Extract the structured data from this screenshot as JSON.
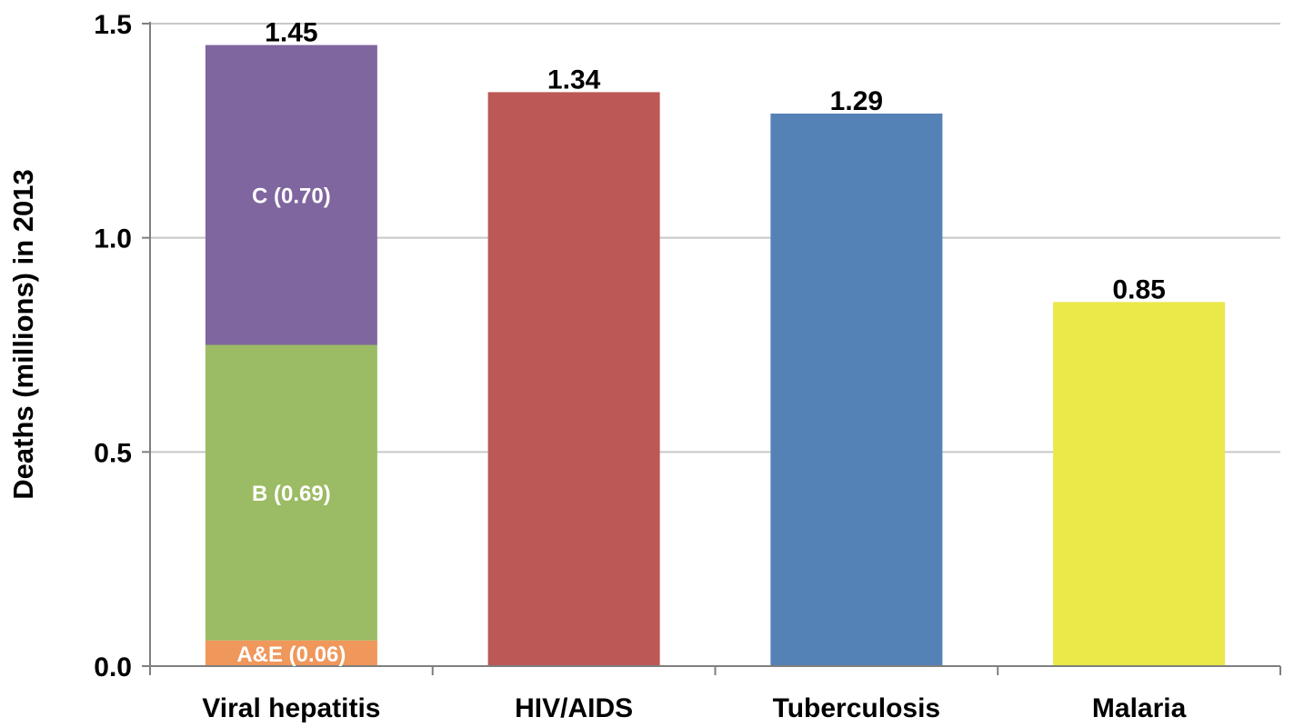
{
  "chart_data": {
    "type": "bar",
    "stacked": true,
    "ylabel": "Deaths (millions) in 2013",
    "ylim": [
      0,
      1.5
    ],
    "yticks": [
      "0.0",
      "0.5",
      "1.0",
      "1.5"
    ],
    "ytick_values": [
      0,
      0.5,
      1.0,
      1.5
    ],
    "grid": true,
    "categories": [
      "Viral hepatitis",
      "HIV/AIDS",
      "Tuberculosis",
      "Malaria"
    ],
    "bars": [
      {
        "category": "Viral hepatitis",
        "total": 1.45,
        "total_label": "1.45",
        "segments": [
          {
            "value": 0.06,
            "label": "A&E (0.06)",
            "color": "#f0975b"
          },
          {
            "value": 0.69,
            "label": "B (0.69)",
            "color": "#9bbb64"
          },
          {
            "value": 0.7,
            "label": "C (0.70)",
            "color": "#7f669f"
          }
        ]
      },
      {
        "category": "HIV/AIDS",
        "total": 1.34,
        "total_label": "1.34",
        "segments": [
          {
            "value": 1.34,
            "label": "",
            "color": "#bc5856"
          }
        ]
      },
      {
        "category": "Tuberculosis",
        "total": 1.29,
        "total_label": "1.29",
        "segments": [
          {
            "value": 1.29,
            "label": "",
            "color": "#5582b6"
          }
        ]
      },
      {
        "category": "Malaria",
        "total": 0.85,
        "total_label": "0.85",
        "segments": [
          {
            "value": 0.85,
            "label": "",
            "color": "#ebe84a"
          }
        ]
      }
    ],
    "colors": {
      "grid": "#c8c8c8",
      "axis": "#7f7f7f"
    }
  }
}
